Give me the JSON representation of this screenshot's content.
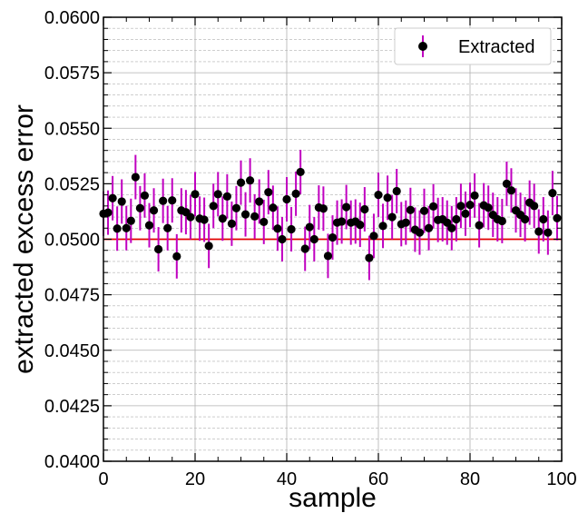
{
  "chart_data": {
    "type": "scatter",
    "xlabel": "sample",
    "ylabel": "extracted excess error",
    "xlim": [
      0,
      100
    ],
    "ylim": [
      0.04,
      0.06
    ],
    "x_ticks": [
      "0",
      "20",
      "40",
      "60",
      "80",
      "100"
    ],
    "y_ticks": [
      "0.0400",
      "0.0425",
      "0.0450",
      "0.0475",
      "0.0500",
      "0.0525",
      "0.0550",
      "0.0575",
      "0.0600"
    ],
    "grid": true,
    "legend": {
      "position": "top-right",
      "entries": [
        "Extracted"
      ]
    },
    "reference_line": {
      "y": 0.05,
      "color": "#e00000"
    },
    "colors": {
      "marker": "#000000",
      "errorbar": "#c000c0",
      "reference": "#e00000"
    },
    "series": [
      {
        "name": "Extracted",
        "x": [
          0,
          1,
          2,
          3,
          4,
          5,
          6,
          7,
          8,
          9,
          10,
          11,
          12,
          13,
          14,
          15,
          16,
          17,
          18,
          19,
          20,
          21,
          22,
          23,
          24,
          25,
          26,
          27,
          28,
          29,
          30,
          31,
          32,
          33,
          34,
          35,
          36,
          37,
          38,
          39,
          40,
          41,
          42,
          43,
          44,
          45,
          46,
          47,
          48,
          49,
          50,
          51,
          52,
          53,
          54,
          55,
          56,
          57,
          58,
          59,
          60,
          61,
          62,
          63,
          64,
          65,
          66,
          67,
          68,
          69,
          70,
          71,
          72,
          73,
          74,
          75,
          76,
          77,
          78,
          79,
          80,
          81,
          82,
          83,
          84,
          85,
          86,
          87,
          88,
          89,
          90,
          91,
          92,
          93,
          94,
          95,
          96,
          97,
          98,
          99
        ],
        "y": [
          0.05115,
          0.0512,
          0.05185,
          0.05048,
          0.0517,
          0.0505,
          0.05083,
          0.0528,
          0.0514,
          0.05197,
          0.05063,
          0.0513,
          0.04955,
          0.05173,
          0.0505,
          0.05175,
          0.04923,
          0.0513,
          0.05122,
          0.051,
          0.05203,
          0.05093,
          0.05088,
          0.0497,
          0.0515,
          0.05203,
          0.05093,
          0.05193,
          0.0507,
          0.0514,
          0.05255,
          0.05112,
          0.05265,
          0.05103,
          0.0517,
          0.05078,
          0.05212,
          0.05142,
          0.05048,
          0.05,
          0.0518,
          0.05045,
          0.05205,
          0.05303,
          0.04957,
          0.05055,
          0.05,
          0.05143,
          0.05138,
          0.04925,
          0.05008,
          0.05075,
          0.0508,
          0.05145,
          0.05075,
          0.0508,
          0.05065,
          0.05135,
          0.04916,
          0.05015,
          0.052,
          0.0506,
          0.05187,
          0.051,
          0.05217,
          0.05068,
          0.05075,
          0.05132,
          0.05043,
          0.0503,
          0.05128,
          0.0505,
          0.05148,
          0.05087,
          0.0509,
          0.05075,
          0.0505,
          0.0509,
          0.0515,
          0.05115,
          0.05155,
          0.05197,
          0.05063,
          0.05153,
          0.05142,
          0.0511,
          0.0509,
          0.05082,
          0.0525,
          0.0522,
          0.0513,
          0.0511,
          0.0509,
          0.05165,
          0.0515,
          0.05035,
          0.0509,
          0.0503,
          0.05208,
          0.05095
        ],
        "yerr": 0.001
      }
    ]
  }
}
